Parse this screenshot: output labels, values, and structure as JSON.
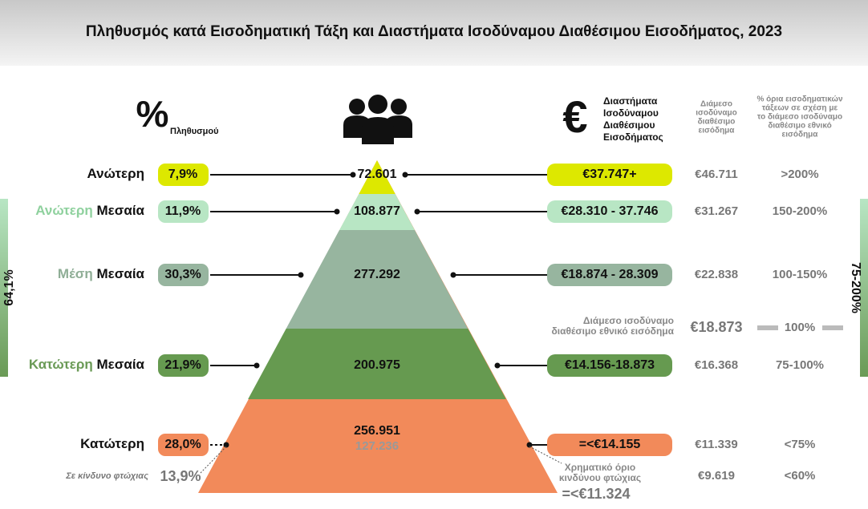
{
  "header": {
    "title": "Πληθυσμός κατά Εισοδηματική Τάξη και Διαστήματα Ισοδύναμου Διαθέσιμου Εισοδήματος, 2023",
    "percent_symbol": "%",
    "percent_label": "Πληθυσμού",
    "euro_symbol": "€",
    "income_label": [
      "Διαστήματα",
      "Ισοδύναμου",
      "Διαθέσιμου",
      "Εισοδήματος"
    ],
    "median_header": [
      "Διάμεσο",
      "ισοδύναμο",
      "διαθέσιμο",
      "εισόδημα"
    ],
    "threshold_header": [
      "% όρια εισοδηματικών",
      "τάξεων σε σχέση με",
      "το διάμεσο ισοδύναμο",
      "διαθέσιμο εθνικό",
      "εισόδημα"
    ]
  },
  "rows": [
    {
      "label": [
        "Ανώτερη"
      ],
      "share": "7,9%",
      "population": "72.601",
      "income_range": "€37.747+",
      "median": "€46.711",
      "threshold": ">200%"
    },
    {
      "label": [
        "Ανώτερη",
        "Μεσαία"
      ],
      "share": "11,9%",
      "population": "108.877",
      "income_range": "€28.310 - 37.746",
      "median": "€31.267",
      "threshold": "150-200%"
    },
    {
      "label": [
        "Μέση",
        "Μεσαία"
      ],
      "share": "30,3%",
      "population": "277.292",
      "income_range": "€18.874 - 28.309",
      "median": "€22.838",
      "threshold": "100-150%"
    },
    {
      "label": [
        "Κατώτερη",
        "Μεσαία"
      ],
      "share": "21,9%",
      "population": "200.975",
      "income_range": "€14.156-18.873",
      "median": "€16.368",
      "threshold": "75-100%"
    },
    {
      "label": [
        "Κατώτερη"
      ],
      "share": "28,0%",
      "population": "256.951",
      "population_at_risk": "127.236",
      "income_range": "=<€14.155",
      "median": "€11.339",
      "threshold": "<75%"
    }
  ],
  "national_median": {
    "label": [
      "Διάμεσο ισοδύναμο",
      "διαθέσιμο εθνικό εισόδημα"
    ],
    "value": "€18.873",
    "threshold": "100%"
  },
  "poverty": {
    "label": "Σε κίνδυνο φτώχιας",
    "share": "13,9%",
    "line_label": [
      "Χρηματικό όριο",
      "κινδύνου φτώχιας"
    ],
    "line_value": "=<€11.324",
    "median": "€9.619",
    "threshold": "<60%"
  },
  "brackets": {
    "left": "64,1%",
    "right": "75-200%"
  }
}
